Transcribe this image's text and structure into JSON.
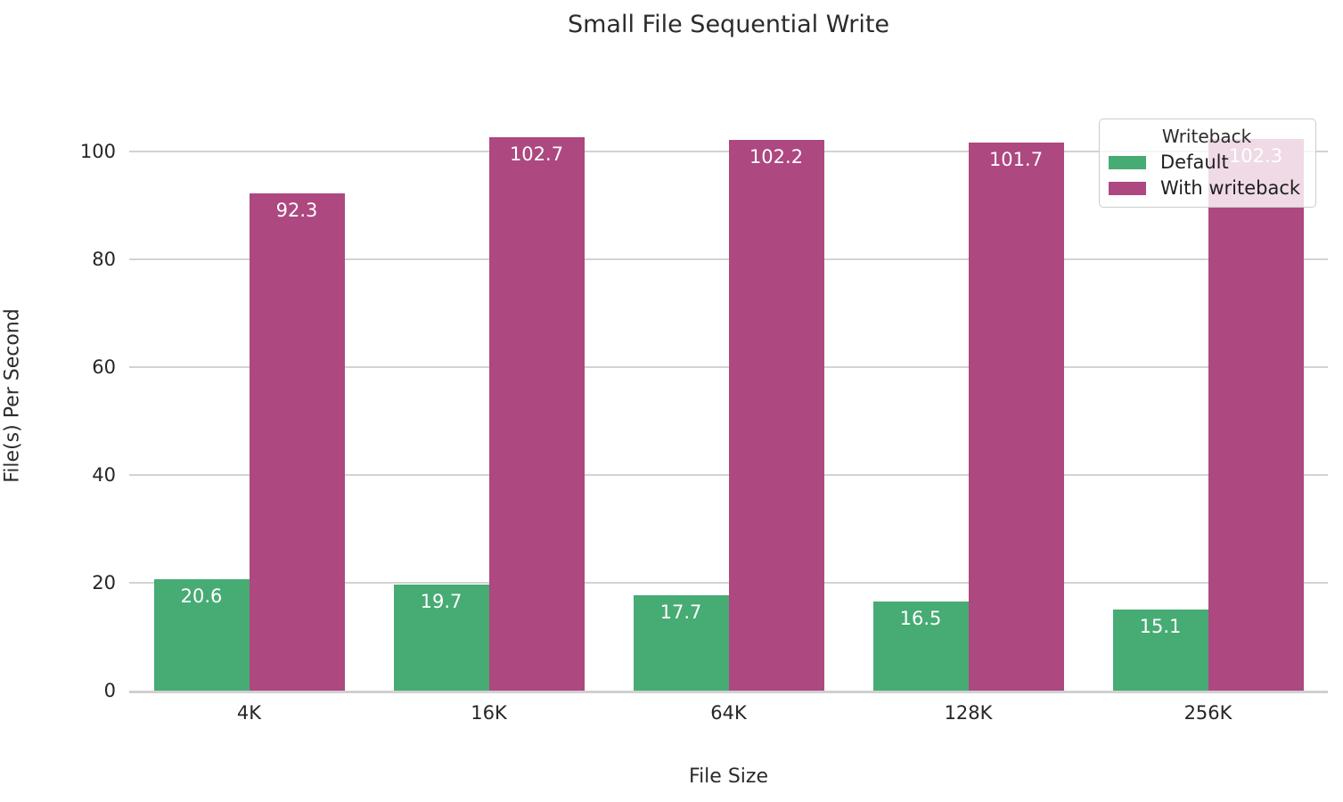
{
  "chart_data": {
    "type": "bar",
    "title": "Small File Sequential Write",
    "xlabel": "File Size",
    "ylabel": "File(s) Per Second",
    "categories": [
      "4K",
      "16K",
      "64K",
      "128K",
      "256K"
    ],
    "series": [
      {
        "name": "Default",
        "color": "#47ab74",
        "values": [
          20.6,
          19.7,
          17.7,
          16.5,
          15.1
        ]
      },
      {
        "name": "With writeback",
        "color": "#ad4880",
        "values": [
          92.3,
          102.7,
          102.2,
          101.7,
          102.3
        ]
      }
    ],
    "yticks": [
      0,
      20,
      40,
      60,
      80,
      100
    ],
    "ylim": [
      0,
      109.4
    ],
    "grid": true,
    "bar_label_decimals": 1,
    "legend": {
      "title": "Writeback",
      "position": "upper right",
      "entries": [
        "Default",
        "With writeback"
      ]
    },
    "colors": {
      "default_series": "#47ab74",
      "writeback_series": "#ad4880",
      "gridline": "#d3d3d3",
      "axis_line": "#d0d0d0",
      "text": "#262626",
      "bar_label_text": "#ffffff"
    }
  }
}
